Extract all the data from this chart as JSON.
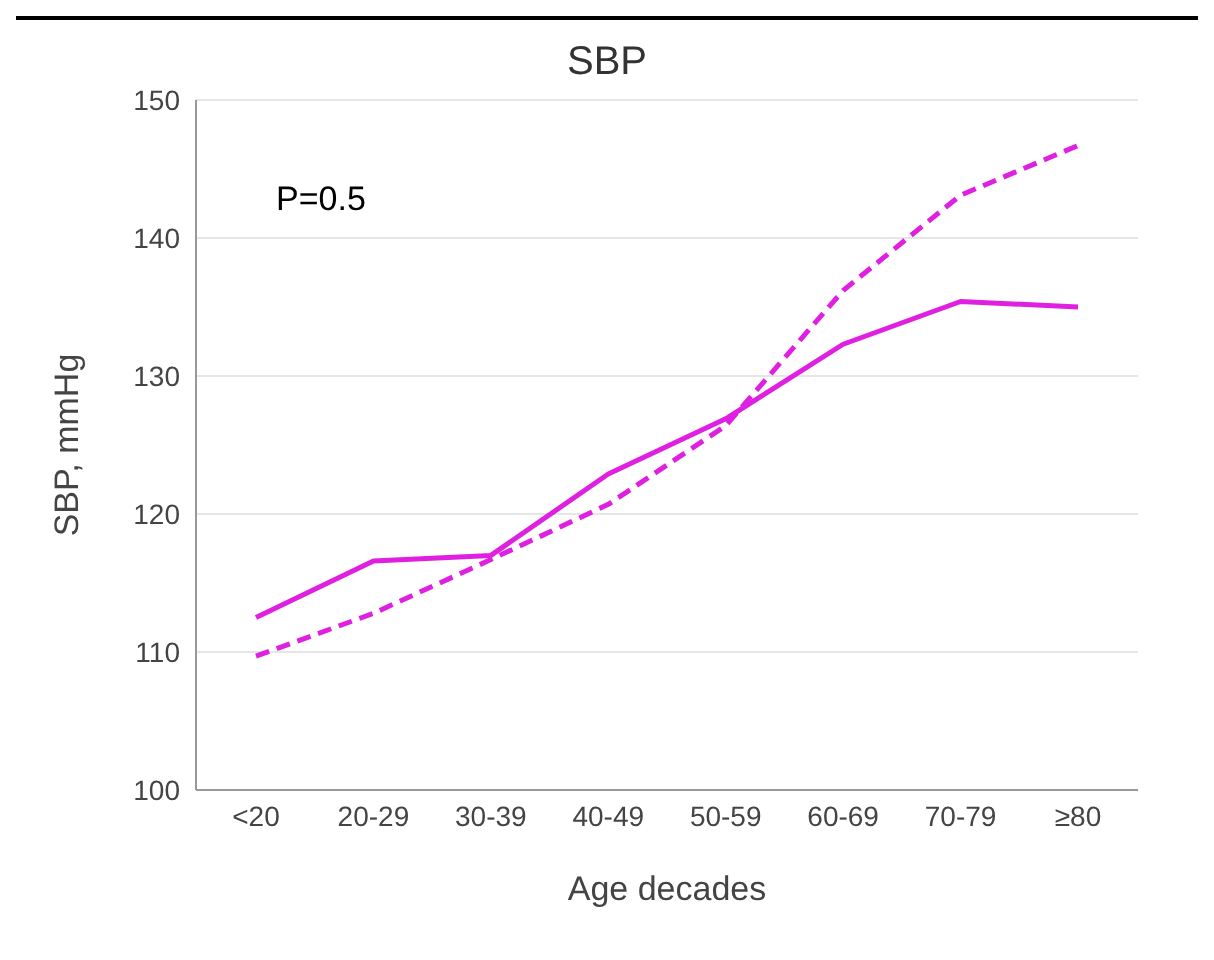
{
  "chart_data": {
    "type": "line",
    "title": "SBP",
    "xlabel": "Age decades",
    "ylabel": "SBP, mmHg",
    "categories": [
      "<20",
      "20-29",
      "30-39",
      "40-49",
      "50-59",
      "60-69",
      "70-79",
      "≥80"
    ],
    "series": [
      {
        "color": "#e020e0",
        "line_style": "solid",
        "values": [
          112.5,
          116.6,
          117,
          122.9,
          126.9,
          132.3,
          135.4,
          135
        ]
      },
      {
        "color": "#e020e0",
        "line_style": "dashed",
        "values": [
          109.7,
          112.8,
          116.7,
          120.7,
          126.4,
          136.2,
          143.1,
          146.7
        ]
      }
    ],
    "ylim": [
      100,
      150
    ],
    "yticks": [
      100,
      110,
      120,
      130,
      140,
      150
    ],
    "grid": "y",
    "marker": "none",
    "annotations": [
      "P=0.5"
    ]
  }
}
